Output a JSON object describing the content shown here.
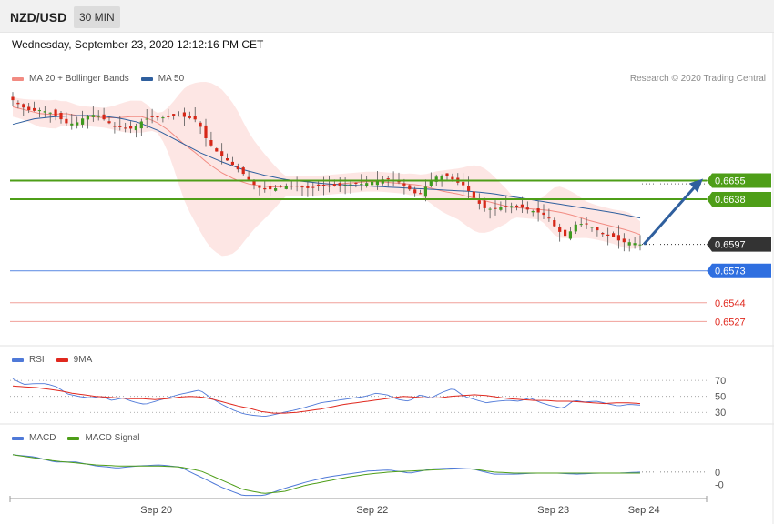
{
  "header": {
    "pair": "NZD/USD",
    "timeframe": "30 MIN"
  },
  "datetime": "Wednesday, September 23, 2020 12:12:16 PM CET",
  "credit": "Research © 2020 Trading Central",
  "legends": {
    "price": [
      {
        "label": "MA 20 + Bollinger Bands",
        "color": "#f28b82"
      },
      {
        "label": "MA 50",
        "color": "#2f5f9e"
      }
    ],
    "rsi": [
      {
        "label": "RSI",
        "color": "#4f79d8"
      },
      {
        "label": "9MA",
        "color": "#e0281e"
      }
    ],
    "macd": [
      {
        "label": "MACD",
        "color": "#4f79d8"
      },
      {
        "label": "MACD Signal",
        "color": "#4e9e18"
      }
    ]
  },
  "chart_data": [
    {
      "type": "candlestick",
      "panel": "price",
      "ylim": [
        0.6505,
        0.6738
      ],
      "last_price": 0.6597,
      "levels": [
        {
          "value": 0.6655,
          "label": "0.6655",
          "color": "#4e9e18",
          "kind": "resistance"
        },
        {
          "value": 0.6638,
          "label": "0.6638",
          "color": "#4e9e18",
          "kind": "resistance"
        },
        {
          "value": 0.6597,
          "label": "0.6597",
          "color": "#333333",
          "kind": "last"
        },
        {
          "value": 0.6573,
          "label": "0.6573",
          "color": "#2f6fe0",
          "kind": "pivot"
        },
        {
          "value": 0.6544,
          "label": "0.6544",
          "color": "#e0281e",
          "kind": "support"
        },
        {
          "value": 0.6527,
          "label": "0.6527",
          "color": "#e0281e",
          "kind": "support"
        }
      ],
      "target": 0.6655,
      "close_path": [
        0.6728,
        0.6722,
        0.6718,
        0.6719,
        0.6717,
        0.6712,
        0.6706,
        0.6708,
        0.6714,
        0.6715,
        0.671,
        0.6704,
        0.6703,
        0.6702,
        0.6709,
        0.6713,
        0.6712,
        0.6713,
        0.6714,
        0.6712,
        0.671,
        0.6692,
        0.6682,
        0.6675,
        0.6668,
        0.6661,
        0.6652,
        0.6647,
        0.6647,
        0.6649,
        0.665,
        0.665,
        0.6648,
        0.665,
        0.665,
        0.665,
        0.6651,
        0.6652,
        0.6652,
        0.6654,
        0.6656,
        0.6656,
        0.6653,
        0.6647,
        0.6641,
        0.6652,
        0.6659,
        0.666,
        0.6654,
        0.665,
        0.6639,
        0.663,
        0.6629,
        0.6631,
        0.6632,
        0.6631,
        0.6628,
        0.6626,
        0.6622,
        0.661,
        0.6604,
        0.6615,
        0.6616,
        0.6612,
        0.6606,
        0.6604,
        0.6599,
        0.6599,
        0.6597
      ],
      "ma20_path": [
        0.6722,
        0.6719,
        0.6716,
        0.6715,
        0.6716,
        0.6714,
        0.6713,
        0.6712,
        0.6712,
        0.6713,
        0.6713,
        0.6708,
        0.67,
        0.6689,
        0.668,
        0.667,
        0.6662,
        0.6656,
        0.6652,
        0.665,
        0.6649,
        0.665,
        0.665,
        0.665,
        0.6651,
        0.6652,
        0.6653,
        0.6654,
        0.6654,
        0.6653,
        0.6652,
        0.6651,
        0.6648,
        0.6645,
        0.6643,
        0.664,
        0.6637,
        0.6634,
        0.6631,
        0.663,
        0.6629,
        0.6628,
        0.6626,
        0.6623,
        0.6619,
        0.6616,
        0.6613,
        0.661,
        0.6606
      ],
      "ma50_path": [
        0.6706,
        0.6711,
        0.6713,
        0.6714,
        0.6714,
        0.6712,
        0.6708,
        0.67,
        0.669,
        0.668,
        0.6672,
        0.6665,
        0.666,
        0.6656,
        0.6654,
        0.6652,
        0.6651,
        0.665,
        0.6649,
        0.6648,
        0.6647,
        0.6646,
        0.6645,
        0.6643,
        0.664,
        0.6637,
        0.6634,
        0.6631,
        0.6628,
        0.6625,
        0.6621
      ]
    },
    {
      "type": "line",
      "panel": "rsi",
      "ylim": [
        20,
        85
      ],
      "ticks": [
        "70",
        "50",
        "30"
      ],
      "tick_values": [
        70,
        50,
        30
      ],
      "series": [
        {
          "name": "RSI",
          "values": [
            72,
            65,
            66,
            66,
            62,
            53,
            50,
            48,
            50,
            45,
            48,
            43,
            40,
            44,
            48,
            52,
            55,
            58,
            48,
            40,
            33,
            28,
            26,
            25,
            28,
            31,
            34,
            38,
            42,
            44,
            46,
            48,
            50,
            54,
            52,
            46,
            44,
            52,
            48,
            55,
            60,
            50,
            46,
            42,
            44,
            45,
            44,
            48,
            42,
            38,
            35,
            45,
            43,
            44,
            41,
            38,
            40,
            39
          ]
        },
        {
          "name": "9MA",
          "values": [
            63,
            62,
            61,
            59,
            57,
            54,
            52,
            50,
            49,
            48,
            47,
            47,
            46,
            47,
            49,
            50,
            49,
            46,
            42,
            38,
            35,
            31,
            29,
            29,
            30,
            32,
            34,
            37,
            40,
            42,
            44,
            46,
            48,
            50,
            49,
            48,
            48,
            50,
            51,
            52,
            51,
            49,
            47,
            46,
            45,
            45,
            44,
            44,
            43,
            42,
            41,
            42,
            42,
            41
          ]
        }
      ]
    },
    {
      "type": "line",
      "panel": "macd",
      "ylim": [
        -0.0026,
        0.0024
      ],
      "ticks": [
        "0",
        "-0"
      ],
      "tick_values": [
        0,
        -0.0012
      ],
      "series": [
        {
          "name": "MACD",
          "values": [
            0.0017,
            0.0015,
            0.001,
            0.001,
            0.0006,
            0.0004,
            0.0006,
            0.0007,
            0.0005,
            -0.0005,
            -0.0015,
            -0.0023,
            -0.0023,
            -0.0016,
            -0.001,
            -0.0005,
            -0.0002,
            0.0001,
            0.0002,
            -0.0001,
            0.0003,
            0.0004,
            0.0003,
            -0.0002,
            -0.0002,
            -0.0001,
            -0.0001,
            -0.0002,
            -0.0001,
            -0.0001,
            0.0
          ]
        },
        {
          "name": "MACD Signal",
          "values": [
            0.0017,
            0.0014,
            0.0011,
            0.0009,
            0.0007,
            0.0006,
            0.0006,
            0.0006,
            0.0005,
            0.0001,
            -0.0008,
            -0.0017,
            -0.0021,
            -0.0019,
            -0.0013,
            -0.0009,
            -0.0005,
            -0.0002,
            0.0,
            0.0001,
            0.0002,
            0.0003,
            0.0003,
            0.0,
            -0.0001,
            -0.0001,
            -0.0001,
            -0.0001,
            -0.0001,
            -0.0001,
            -0.0001
          ]
        }
      ]
    }
  ],
  "x_axis": {
    "ticks": [
      "Sep 20",
      "Sep 22",
      "Sep 23",
      "Sep 24"
    ],
    "tick_positions": [
      0.21,
      0.52,
      0.78,
      0.91
    ]
  }
}
